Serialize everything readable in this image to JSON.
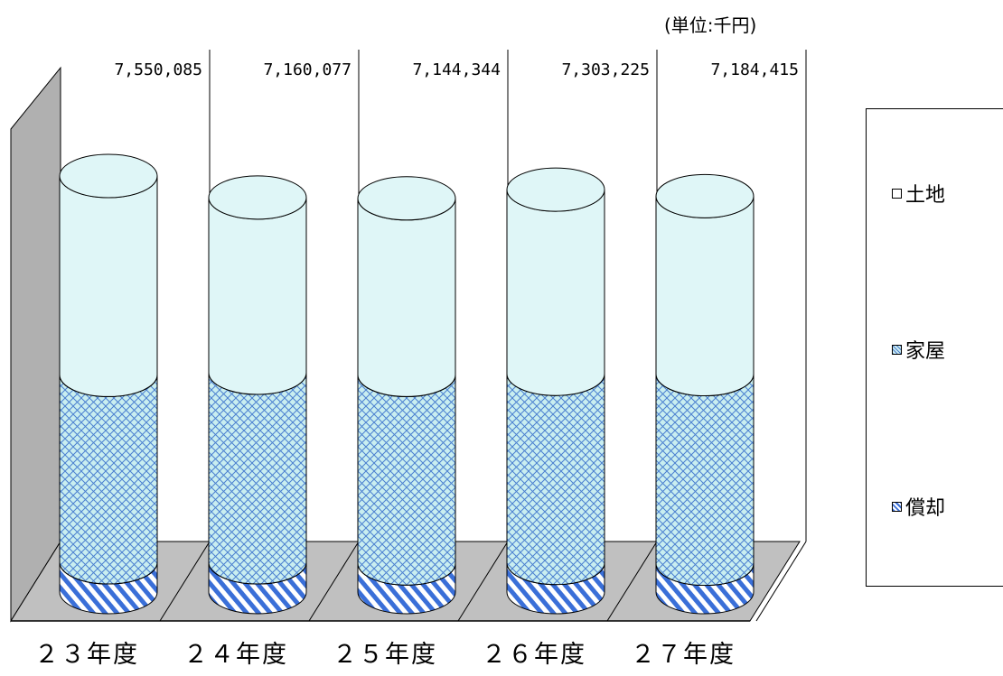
{
  "unit_label": "(単位:千円)",
  "legend": {
    "items": [
      {
        "label": "土地",
        "key": "land"
      },
      {
        "label": "家屋",
        "key": "house"
      },
      {
        "label": "償却",
        "key": "depreciable"
      }
    ]
  },
  "colors": {
    "land_fill": "#dff6f7",
    "house_fill": "#c9eef0",
    "house_hatch": "#4a7fd0",
    "depreciable_hatch": "#3a6fd8",
    "wall": "#b0b0b0",
    "floor": "#c0c0c0"
  },
  "chart_data": {
    "type": "bar",
    "style": "3d-cylinder-stacked",
    "categories": [
      "２３年度",
      "２４年度",
      "２５年度",
      "２６年度",
      "２７年度"
    ],
    "totals": [
      7550085,
      7160077,
      7144344,
      7303225,
      7184415
    ],
    "total_labels": [
      "7,550,085",
      "7,160,077",
      "7,144,344",
      "7,303,225",
      "7,184,415"
    ],
    "series": [
      {
        "name": "償却",
        "values": [
          540000,
          540000,
          520000,
          530000,
          515000
        ]
      },
      {
        "name": "家屋",
        "values": [
          3400000,
          3440000,
          3420000,
          3430000,
          3440000
        ]
      },
      {
        "name": "土地",
        "values": [
          3610085,
          3180077,
          3204344,
          3343225,
          3229415
        ]
      }
    ],
    "unit": "千円",
    "grid": false,
    "legend_position": "right"
  }
}
